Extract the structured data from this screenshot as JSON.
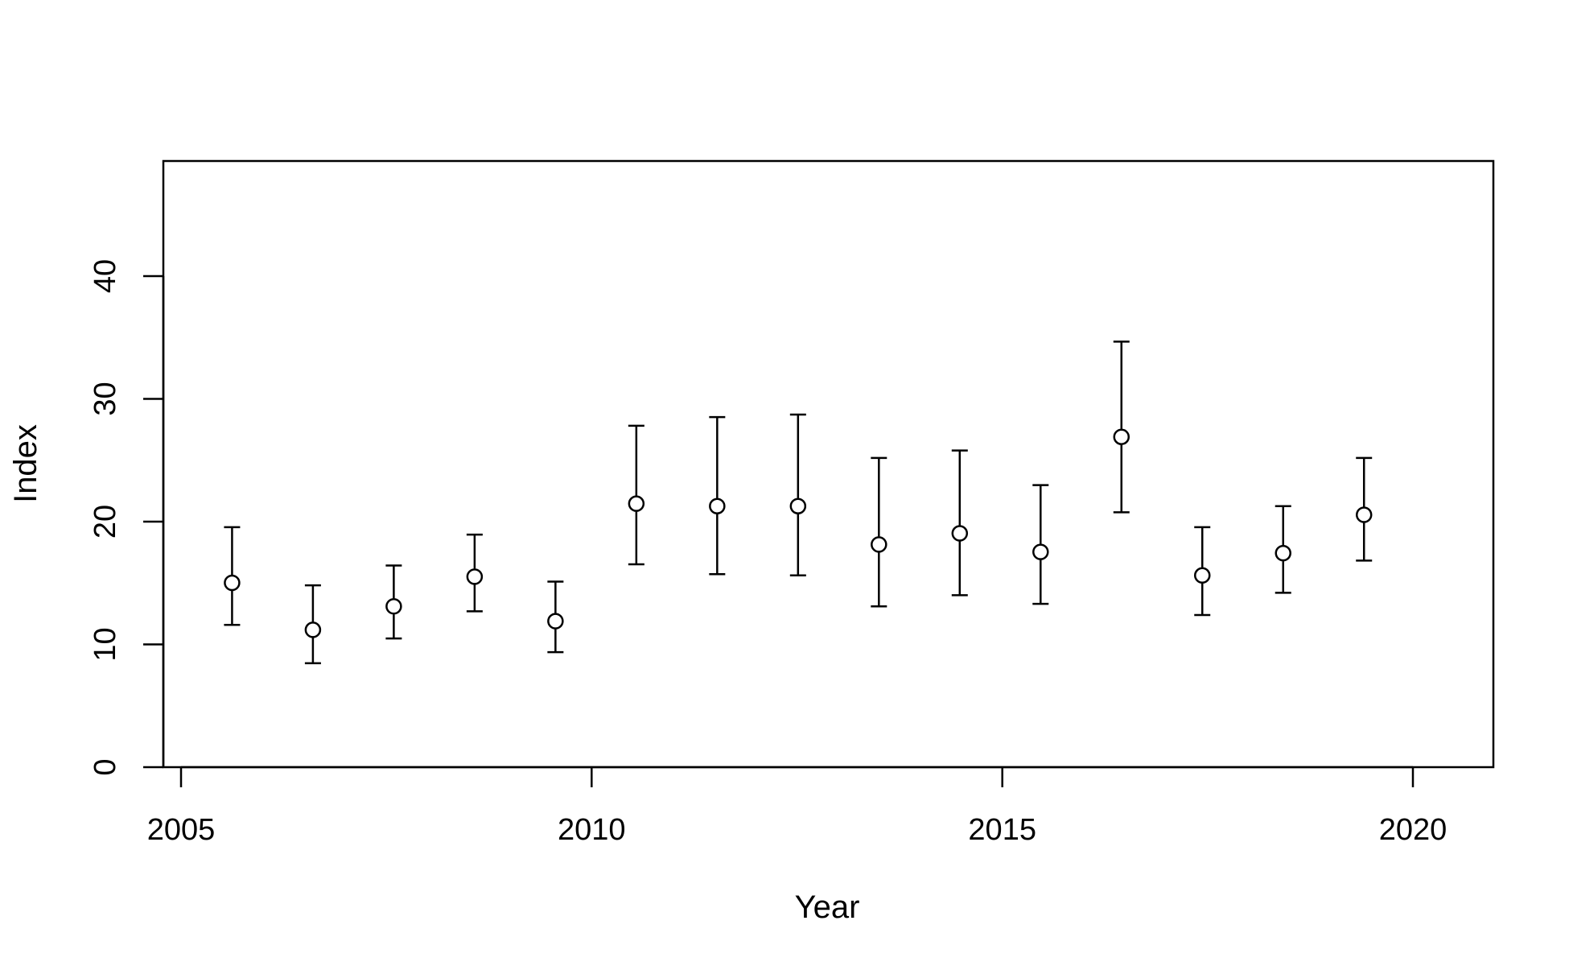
{
  "chart_data": {
    "type": "scatter",
    "xlabel": "Year",
    "ylabel": "Index",
    "xlim": [
      2004.55,
      2021.0
    ],
    "ylim": [
      0,
      49
    ],
    "x_ticks": [
      "2005",
      "2010",
      "2015",
      "2020"
    ],
    "y_ticks": [
      "0",
      "10",
      "20",
      "30",
      "40"
    ],
    "grid": false,
    "point_style": "open-circle",
    "colors": {
      "marks": "#000000",
      "background": "#ffffff"
    },
    "points": [
      {
        "x": 2005.4,
        "y": 14.9,
        "lower": 11.5,
        "upper": 19.4
      },
      {
        "x": 2006.4,
        "y": 11.1,
        "lower": 8.4,
        "upper": 14.7
      },
      {
        "x": 2007.4,
        "y": 13.0,
        "lower": 10.4,
        "upper": 16.3
      },
      {
        "x": 2008.4,
        "y": 15.4,
        "lower": 12.6,
        "upper": 18.8
      },
      {
        "x": 2009.4,
        "y": 11.8,
        "lower": 9.3,
        "upper": 15.0
      },
      {
        "x": 2010.4,
        "y": 21.3,
        "lower": 16.4,
        "upper": 27.6
      },
      {
        "x": 2011.4,
        "y": 21.1,
        "lower": 15.6,
        "upper": 28.3
      },
      {
        "x": 2012.4,
        "y": 21.1,
        "lower": 15.5,
        "upper": 28.5
      },
      {
        "x": 2013.4,
        "y": 18.0,
        "lower": 13.0,
        "upper": 25.0
      },
      {
        "x": 2014.4,
        "y": 18.9,
        "lower": 13.9,
        "upper": 25.6
      },
      {
        "x": 2015.4,
        "y": 17.4,
        "lower": 13.2,
        "upper": 22.8
      },
      {
        "x": 2016.4,
        "y": 26.7,
        "lower": 20.6,
        "upper": 34.4
      },
      {
        "x": 2017.4,
        "y": 15.5,
        "lower": 12.3,
        "upper": 19.4
      },
      {
        "x": 2018.4,
        "y": 17.3,
        "lower": 14.1,
        "upper": 21.1
      },
      {
        "x": 2019.4,
        "y": 20.4,
        "lower": 16.7,
        "upper": 25.0
      }
    ]
  }
}
